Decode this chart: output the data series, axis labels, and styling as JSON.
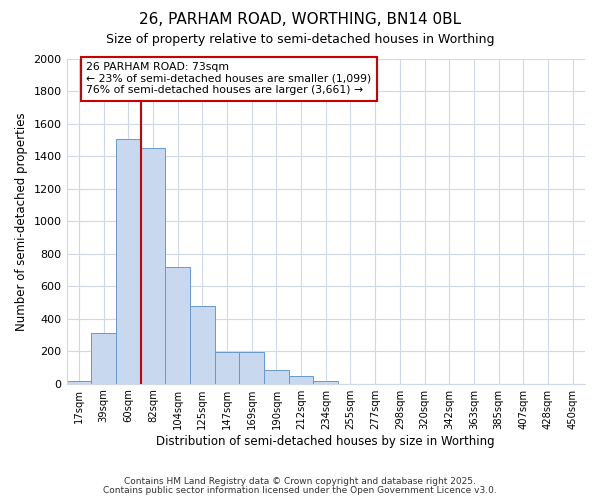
{
  "title1": "26, PARHAM ROAD, WORTHING, BN14 0BL",
  "title2": "Size of property relative to semi-detached houses in Worthing",
  "xlabel": "Distribution of semi-detached houses by size in Worthing",
  "ylabel": "Number of semi-detached properties",
  "categories": [
    "17sqm",
    "39sqm",
    "60sqm",
    "82sqm",
    "104sqm",
    "125sqm",
    "147sqm",
    "169sqm",
    "190sqm",
    "212sqm",
    "234sqm",
    "255sqm",
    "277sqm",
    "298sqm",
    "320sqm",
    "342sqm",
    "363sqm",
    "385sqm",
    "407sqm",
    "428sqm",
    "450sqm"
  ],
  "values": [
    18,
    315,
    1505,
    1450,
    720,
    480,
    195,
    195,
    85,
    50,
    18,
    0,
    0,
    0,
    0,
    0,
    0,
    0,
    0,
    0,
    0
  ],
  "bar_color": "#c8d8ee",
  "bar_edge_color": "#6699cc",
  "background_color": "#ffffff",
  "grid_color": "#d0d8e8",
  "property_label": "26 PARHAM ROAD: 73sqm",
  "pct_smaller": 23,
  "pct_smaller_count": "1,099",
  "pct_larger": 76,
  "pct_larger_count": "3,661",
  "vline_color": "#cc0000",
  "vline_bar_index": 2.5,
  "annotation_box_color": "#ffffff",
  "annotation_box_edge": "#cc0000",
  "ylim": [
    0,
    2000
  ],
  "yticks": [
    0,
    200,
    400,
    600,
    800,
    1000,
    1200,
    1400,
    1600,
    1800,
    2000
  ],
  "footnote1": "Contains HM Land Registry data © Crown copyright and database right 2025.",
  "footnote2": "Contains public sector information licensed under the Open Government Licence v3.0."
}
